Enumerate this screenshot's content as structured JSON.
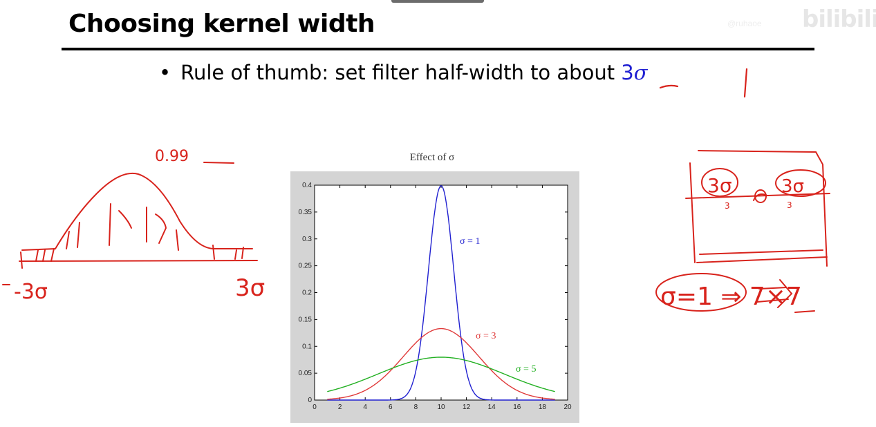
{
  "slide": {
    "title": "Choosing kernel width",
    "bullet_text": "Rule of thumb: set filter half-width to about ",
    "bullet_accent_number": "3",
    "bullet_accent_symbol": "σ",
    "watermark": "bilibili",
    "watermark_small": "@ruhaoe"
  },
  "annotations": {
    "left_top": "0.99",
    "left_neg": "-3σ",
    "left_pos": "3σ",
    "right_box_left": "3σ",
    "right_box_right": "3σ",
    "right_sub_left": "3",
    "right_sub_right": "3",
    "right_equation": "σ=1 ⇒ 7×7"
  },
  "colors": {
    "accent_blue": "#1f1fd2",
    "ink_red": "#d8231c",
    "series_blue": "#2020d0",
    "series_red": "#e03a3a",
    "series_green": "#22b022",
    "chart_bg": "#d4d4d4"
  },
  "chart_data": {
    "type": "line",
    "title": "Effect of σ",
    "xlim": [
      0,
      20
    ],
    "ylim": [
      0,
      0.4
    ],
    "x_ticks": [
      0,
      2,
      4,
      6,
      8,
      10,
      12,
      14,
      16,
      18,
      20
    ],
    "y_ticks": [
      0,
      0.05,
      0.1,
      0.15,
      0.2,
      0.25,
      0.3,
      0.35,
      0.4
    ],
    "x_tick_labels": [
      "0",
      "2",
      "4",
      "6",
      "8",
      "10",
      "12",
      "14",
      "16",
      "18",
      "20"
    ],
    "y_tick_labels": [
      "0",
      "0.05",
      "0.1",
      "0.15",
      "0.2",
      "0.25",
      "0.3",
      "0.35",
      "0.4"
    ],
    "x_range": [
      1,
      19
    ],
    "mean": 10,
    "series": [
      {
        "name": "σ = 1",
        "sigma": 1,
        "color": "#2020d0"
      },
      {
        "name": "σ = 3",
        "sigma": 3,
        "color": "#e03a3a"
      },
      {
        "name": "σ = 5",
        "sigma": 5,
        "color": "#22b022"
      }
    ],
    "grid": false
  }
}
